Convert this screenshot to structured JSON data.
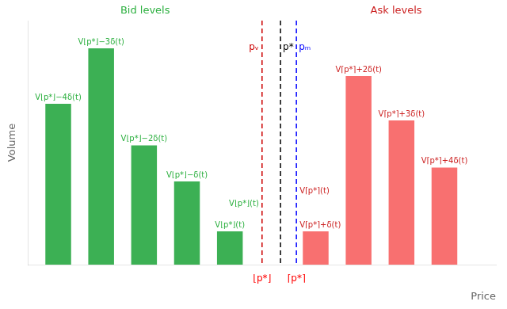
{
  "chart_data": {
    "type": "bar",
    "xlabel": "Price",
    "ylabel": "Volume",
    "xlim": [
      0.3,
      11.2
    ],
    "ylim": [
      0,
      0.88
    ],
    "xticks": [
      {
        "value": 5.75,
        "label": "⌊p*⌋",
        "color": "red"
      },
      {
        "value": 6.55,
        "label": "⌈p*⌉",
        "color": "red"
      }
    ],
    "yticks": [],
    "tick_labels": "x",
    "grid": false,
    "series": [
      {
        "title": "Bid levels",
        "color": "#3cb054",
        "label_color": "#2db040",
        "x": [
          1,
          2,
          3,
          4,
          5
        ],
        "values": [
          0.58,
          0.78,
          0.43,
          0.3,
          0.12
        ],
        "labels": [
          "V⌊p*⌋−4δ(t)",
          "V⌊p*⌋−3δ(t)",
          "V⌊p*⌋−2δ(t)",
          "V⌊p*⌋−δ(t)",
          "V⌊p*⌋(t)"
        ]
      },
      {
        "title": "Ask levels",
        "color": "#f87070",
        "label_color": "#cc2222",
        "x": [
          7,
          8,
          9,
          10
        ],
        "values": [
          0.12,
          0.68,
          0.52,
          0.35
        ],
        "labels": [
          "V⌈p*⌉+δ(t)",
          "V⌈p*⌉+2δ(t)",
          "V⌈p*⌉+3δ(t)",
          "V⌈p*⌉+4δ(t)"
        ]
      }
    ],
    "vlines": [
      {
        "x": 5.75,
        "color": "#cc0000",
        "label": "pᵥ",
        "line_style": "dashed"
      },
      {
        "x": 6.18,
        "color": "black",
        "label": "p*",
        "line_style": "dashed"
      },
      {
        "x": 6.55,
        "color": "blue",
        "label": "pₘ",
        "line_style": "dashed"
      }
    ],
    "annotations": [
      {
        "text": "V⌊p*⌋(t)",
        "color": "#2db040"
      },
      {
        "text": "V⌈p*⌉(t)",
        "color": "#cc2222"
      }
    ]
  }
}
